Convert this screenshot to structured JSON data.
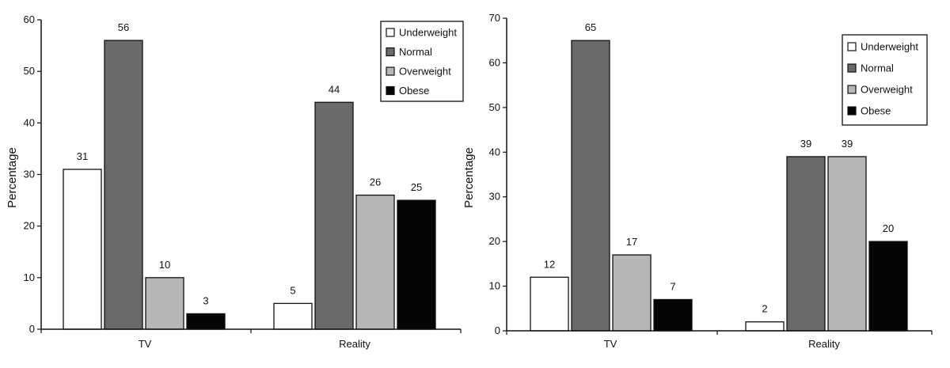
{
  "colors": {
    "Underweight": "#ffffff",
    "Normal": "#6a6a6a",
    "Overweight": "#b7b7b7",
    "Obese": "#050505"
  },
  "chart_data": [
    {
      "type": "bar",
      "title": "",
      "xlabel": "",
      "ylabel": "Percentage",
      "ylim": [
        0,
        60
      ],
      "yticks": [
        0,
        10,
        20,
        30,
        40,
        50,
        60
      ],
      "categories": [
        "TV",
        "Reality"
      ],
      "series": [
        {
          "name": "Underweight",
          "values": [
            31,
            5
          ]
        },
        {
          "name": "Normal",
          "values": [
            56,
            44
          ]
        },
        {
          "name": "Overweight",
          "values": [
            10,
            26
          ]
        },
        {
          "name": "Obese",
          "values": [
            3,
            25
          ]
        }
      ],
      "legend": {
        "position": "top-right",
        "entries": [
          "Underweight",
          "Normal",
          "Overweight",
          "Obese"
        ]
      }
    },
    {
      "type": "bar",
      "title": "",
      "xlabel": "",
      "ylabel": "Percentage",
      "ylim": [
        0,
        70
      ],
      "yticks": [
        0,
        10,
        20,
        30,
        40,
        50,
        60,
        70
      ],
      "categories": [
        "TV",
        "Reality"
      ],
      "series": [
        {
          "name": "Underweight",
          "values": [
            12,
            2
          ]
        },
        {
          "name": "Normal",
          "values": [
            65,
            39
          ]
        },
        {
          "name": "Overweight",
          "values": [
            17,
            39
          ]
        },
        {
          "name": "Obese",
          "values": [
            7,
            20
          ]
        }
      ],
      "legend": {
        "position": "top-right",
        "entries": [
          "Underweight",
          "Normal",
          "Overweight",
          "Obese"
        ]
      }
    }
  ]
}
